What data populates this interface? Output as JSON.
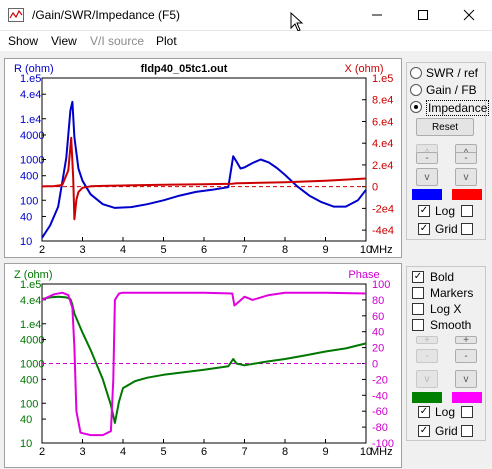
{
  "window": {
    "title": "/Gain/SWR/Impedance (F5)"
  },
  "menu": {
    "show": "Show",
    "view": "View",
    "vi_source": "V/I source",
    "plot": "Plot"
  },
  "top_chart": {
    "title": "fldp40_05tc1.out",
    "left_label": "R (ohm)",
    "right_label": "X (ohm)",
    "x_unit": "MHz",
    "x_ticks": [
      "2",
      "3",
      "4",
      "5",
      "6",
      "7",
      "8",
      "9",
      "10"
    ],
    "left_ticks": [
      "1.e5",
      "4.e4",
      "1.e4",
      "4000",
      "1000",
      "400",
      "100",
      "40",
      "10"
    ],
    "right_ticks": [
      "1.e5",
      "8.e4",
      "6.e4",
      "4.e4",
      "2.e4",
      "0",
      "-2e4",
      "-4e4"
    ]
  },
  "bottom_chart": {
    "left_label": "Z (ohm)",
    "right_label": "Phase",
    "x_unit": "MHz",
    "x_ticks": [
      "2",
      "3",
      "4",
      "5",
      "6",
      "7",
      "8",
      "9",
      "10"
    ],
    "left_ticks": [
      "1.e5",
      "4.e4",
      "1.e4",
      "4000",
      "1000",
      "400",
      "100",
      "40",
      "10"
    ],
    "right_ticks": [
      "100",
      "80",
      "60",
      "40",
      "20",
      "0",
      "-20",
      "-40",
      "-60",
      "-80",
      "-100"
    ]
  },
  "chart_data": [
    {
      "type": "line",
      "title": "fldp40_05tc1.out",
      "xlabel": "MHz",
      "xlim": [
        2,
        10
      ],
      "series": [
        {
          "name": "R (ohm)",
          "axis": "left",
          "scale": "log",
          "color": "#0000cc",
          "x": [
            2.0,
            2.2,
            2.4,
            2.6,
            2.7,
            2.75,
            2.8,
            2.9,
            3.0,
            3.2,
            3.5,
            3.8,
            4.2,
            4.6,
            5.0,
            5.4,
            5.8,
            6.2,
            6.6,
            6.72,
            6.8,
            6.9,
            7.0,
            7.2,
            7.4,
            7.6,
            7.8,
            8.0,
            8.3,
            8.6,
            8.9,
            9.2,
            9.5,
            9.8,
            10.0
          ],
          "y": [
            12,
            24,
            70,
            1100,
            16000,
            26000,
            3500,
            600,
            300,
            140,
            80,
            65,
            68,
            80,
            100,
            130,
            160,
            180,
            210,
            1200,
            900,
            600,
            640,
            820,
            1000,
            850,
            620,
            420,
            220,
            130,
            90,
            70,
            70,
            100,
            180
          ]
        },
        {
          "name": "X (ohm)",
          "axis": "right",
          "scale": "linear",
          "color": "#cc0000",
          "x": [
            2.0,
            2.3,
            2.5,
            2.65,
            2.72,
            2.77,
            2.8,
            2.85,
            2.9,
            3.0,
            3.2,
            3.5,
            4.0,
            5.0,
            6.0,
            6.7,
            6.8,
            7.0,
            8.0,
            9.0,
            10.0
          ],
          "y": [
            200,
            500,
            1500,
            15000,
            45000,
            8000,
            -30000,
            -12000,
            -5000,
            -1000,
            300,
            700,
            1100,
            1700,
            2200,
            2700,
            3200,
            3300,
            4000,
            5500,
            7500
          ]
        }
      ],
      "ylim_left": [
        10,
        100000
      ],
      "ylim_right": [
        -50000,
        100000
      ],
      "grid": false
    },
    {
      "type": "line",
      "xlabel": "MHz",
      "xlim": [
        2,
        10
      ],
      "series": [
        {
          "name": "Z (ohm)",
          "axis": "left",
          "scale": "log",
          "color": "#007700",
          "x": [
            2.0,
            2.2,
            2.4,
            2.6,
            2.7,
            2.75,
            2.8,
            3.0,
            3.2,
            3.5,
            3.7,
            3.8,
            3.9,
            4.0,
            4.3,
            4.6,
            5.0,
            5.5,
            6.0,
            6.6,
            6.72,
            6.8,
            7.0,
            7.5,
            8.0,
            8.5,
            9.0,
            9.5,
            10.0
          ],
          "y": [
            42000,
            46000,
            48000,
            46000,
            42000,
            30000,
            18000,
            6000,
            2200,
            400,
            90,
            32,
            110,
            240,
            360,
            440,
            520,
            600,
            700,
            850,
            1300,
            1000,
            900,
            1100,
            1300,
            1600,
            2000,
            2400,
            3200
          ]
        },
        {
          "name": "Phase",
          "axis": "right",
          "scale": "linear",
          "color": "#e000e0",
          "x": [
            2.0,
            2.3,
            2.5,
            2.65,
            2.75,
            2.8,
            2.85,
            2.95,
            3.2,
            3.5,
            3.7,
            3.76,
            3.8,
            3.9,
            4.0,
            4.5,
            5.0,
            6.0,
            6.7,
            6.75,
            6.8,
            7.0,
            7.2,
            7.6,
            8.0,
            9.0,
            10.0
          ],
          "y": [
            80,
            87,
            89,
            86,
            70,
            20,
            -60,
            -87,
            -90,
            -90,
            -85,
            -20,
            80,
            88,
            89,
            89,
            89,
            89,
            88,
            73,
            75,
            84,
            80,
            86,
            89,
            89,
            88
          ]
        }
      ],
      "ylim_left": [
        10,
        100000
      ],
      "ylim_right": [
        -100,
        100
      ],
      "grid": false
    }
  ],
  "side": {
    "radio_swr": "SWR / ref",
    "radio_gain": "Gain / FB",
    "radio_impedance": "Impedance",
    "reset": "Reset",
    "top_log": "Log",
    "top_grid": "Grid",
    "bold": "Bold",
    "markers": "Markers",
    "logx": "Log X",
    "smooth": "Smooth",
    "bottom_log": "Log",
    "bottom_grid": "Grid",
    "arrow_up": "^",
    "arrow_down": "v",
    "dash": "-",
    "plus": "+",
    "colors": {
      "blue": "#0000ff",
      "red": "#ff0000",
      "green": "#008000",
      "magenta": "#ff00ff"
    }
  }
}
